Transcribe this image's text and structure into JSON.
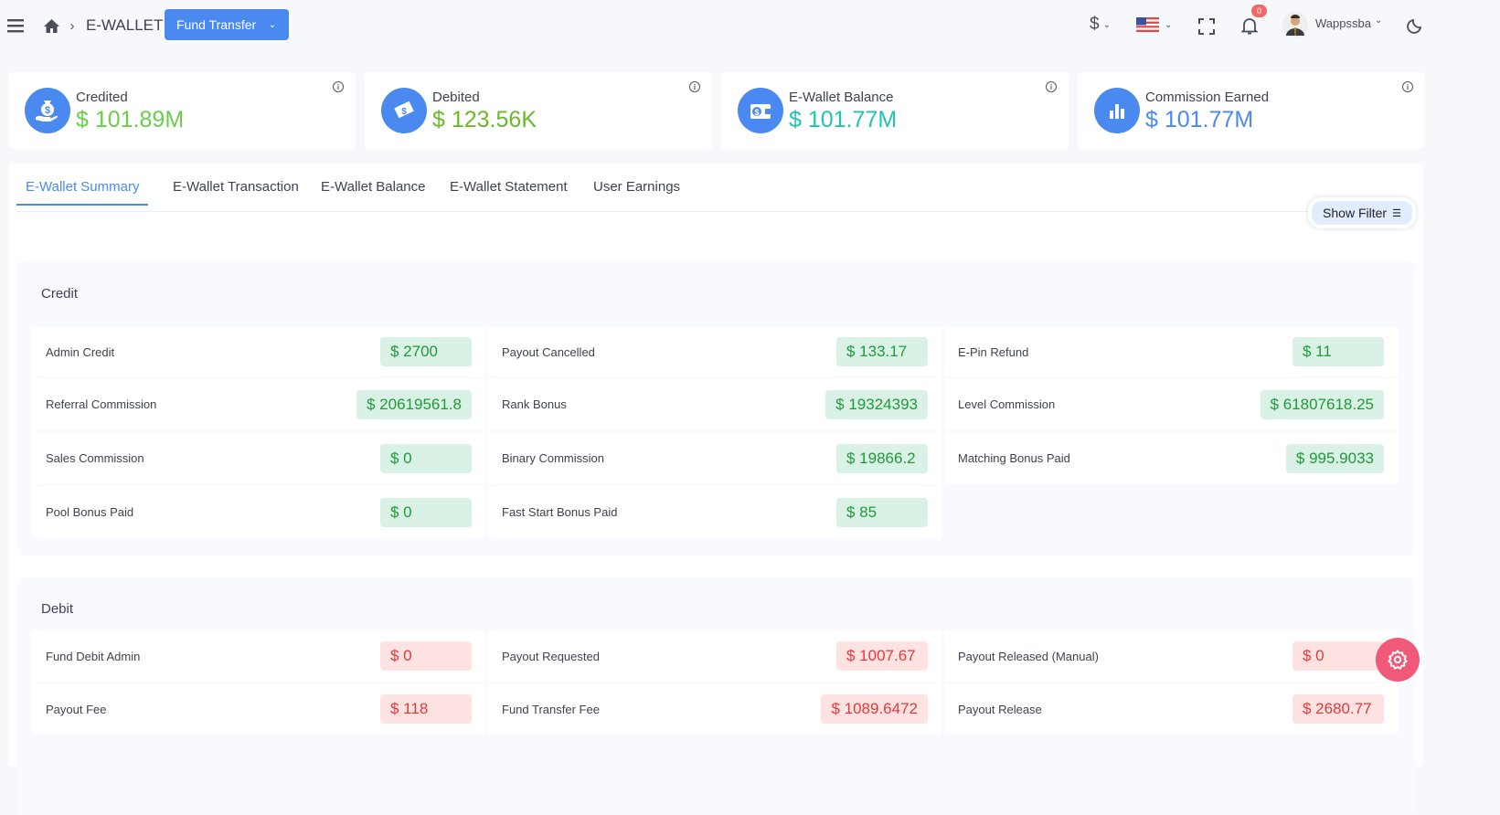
{
  "header": {
    "breadcrumb": "E-WALLET",
    "fund_button": "Fund Transfer",
    "currency": "$",
    "user": "Wappssba",
    "notification_count": "0"
  },
  "cards": [
    {
      "label": "Credited",
      "value": "$ 101.89M",
      "color": "#6acd4a",
      "icon": "money-bag-hand-icon"
    },
    {
      "label": "Debited",
      "value": "$ 123.56K",
      "color": "#6cb82d",
      "icon": "money-hand-icon"
    },
    {
      "label": "E-Wallet Balance",
      "value": "$ 101.77M",
      "color": "#1fc3b3",
      "icon": "wallet-icon"
    },
    {
      "label": "Commission Earned",
      "value": "$ 101.77M",
      "color": "#4a8af0",
      "icon": "bar-chart-icon"
    }
  ],
  "tabs": [
    "E-Wallet Summary",
    "E-Wallet Transaction",
    "E-Wallet Balance",
    "E-Wallet Statement",
    "User Earnings"
  ],
  "active_tab": "E-Wallet Summary",
  "filter_label": "Show Filter",
  "credit": {
    "title": "Credit",
    "items": [
      {
        "name": "Admin Credit",
        "value": "$ 2700"
      },
      {
        "name": "Payout Cancelled",
        "value": "$ 133.17"
      },
      {
        "name": "E-Pin Refund",
        "value": "$ 11"
      },
      {
        "name": "Referral Commission",
        "value": "$ 20619561.8"
      },
      {
        "name": "Rank Bonus",
        "value": "$ 19324393"
      },
      {
        "name": "Level Commission",
        "value": "$ 61807618.25"
      },
      {
        "name": "Sales Commission",
        "value": "$ 0"
      },
      {
        "name": "Binary Commission",
        "value": "$ 19866.2"
      },
      {
        "name": "Matching Bonus Paid",
        "value": "$ 995.9033"
      },
      {
        "name": "Pool Bonus Paid",
        "value": "$ 0"
      },
      {
        "name": "Fast Start Bonus Paid",
        "value": "$ 85"
      }
    ]
  },
  "debit": {
    "title": "Debit",
    "items": [
      {
        "name": "Fund Debit Admin",
        "value": "$ 0"
      },
      {
        "name": "Payout Requested",
        "value": "$ 1007.67"
      },
      {
        "name": "Payout Released (Manual)",
        "value": "$ 0"
      },
      {
        "name": "Payout Fee",
        "value": "$ 118"
      },
      {
        "name": "Fund Transfer Fee",
        "value": "$ 1089.6472"
      },
      {
        "name": "Payout Release",
        "value": "$ 2680.77"
      }
    ]
  }
}
